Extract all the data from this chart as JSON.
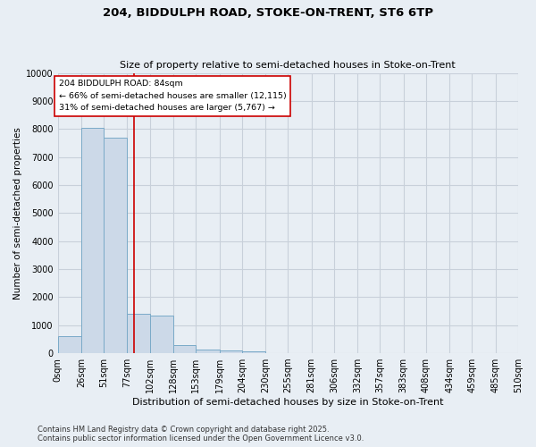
{
  "title1": "204, BIDDULPH ROAD, STOKE-ON-TRENT, ST6 6TP",
  "title2": "Size of property relative to semi-detached houses in Stoke-on-Trent",
  "xlabel": "Distribution of semi-detached houses by size in Stoke-on-Trent",
  "ylabel": "Number of semi-detached properties",
  "bin_labels": [
    "0sqm",
    "26sqm",
    "51sqm",
    "77sqm",
    "102sqm",
    "128sqm",
    "153sqm",
    "179sqm",
    "204sqm",
    "230sqm",
    "255sqm",
    "281sqm",
    "306sqm",
    "332sqm",
    "357sqm",
    "383sqm",
    "408sqm",
    "434sqm",
    "459sqm",
    "485sqm",
    "510sqm"
  ],
  "bin_edges": [
    0,
    26,
    51,
    77,
    102,
    128,
    153,
    179,
    204,
    230,
    255,
    281,
    306,
    332,
    357,
    383,
    408,
    434,
    459,
    485,
    510
  ],
  "bar_heights": [
    600,
    8050,
    7700,
    1400,
    1350,
    290,
    145,
    100,
    60,
    0,
    0,
    0,
    0,
    0,
    0,
    0,
    0,
    0,
    0,
    0
  ],
  "bar_color": "#ccd9e8",
  "bar_edge_color": "#7aaac8",
  "grid_color": "#c8d0da",
  "property_line_x": 84,
  "property_line_color": "#cc0000",
  "annotation_line1": "204 BIDDULPH ROAD: 84sqm",
  "annotation_line2": "← 66% of semi-detached houses are smaller (12,115)",
  "annotation_line3": "31% of semi-detached houses are larger (5,767) →",
  "annotation_box_color": "white",
  "annotation_box_edge": "#cc0000",
  "ylim": [
    0,
    10000
  ],
  "yticks": [
    0,
    1000,
    2000,
    3000,
    4000,
    5000,
    6000,
    7000,
    8000,
    9000,
    10000
  ],
  "footer1": "Contains HM Land Registry data © Crown copyright and database right 2025.",
  "footer2": "Contains public sector information licensed under the Open Government Licence v3.0.",
  "bg_color": "#e8eef4",
  "plot_bg_color": "#e8eef4",
  "title_fontsize": 9.5,
  "subtitle_fontsize": 8,
  "tick_fontsize": 7,
  "ylabel_fontsize": 7.5,
  "xlabel_fontsize": 8
}
